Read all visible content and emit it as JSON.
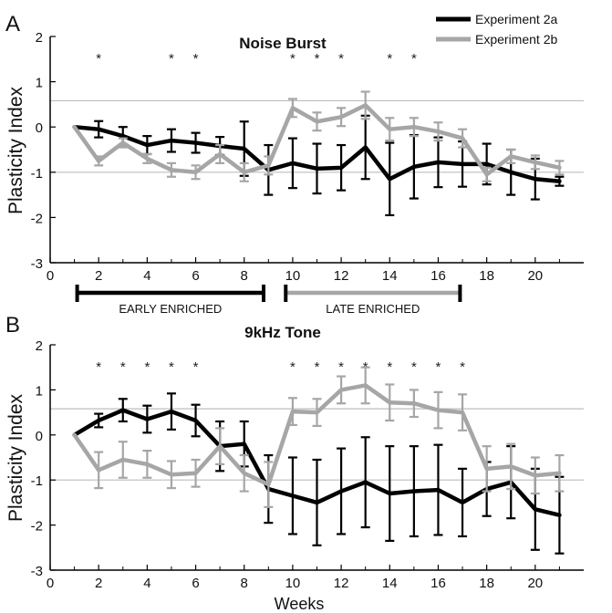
{
  "legend": [
    {
      "label": "Experiment 2a",
      "color": "#000000"
    },
    {
      "label": "Experiment 2b",
      "color": "#a6a6a6"
    }
  ],
  "x_axis_label": "Weeks",
  "brackets": [
    {
      "label": "EARLY ENRICHED",
      "from": 1,
      "to": 8.8,
      "color": "#000000"
    },
    {
      "label": "LATE ENRICHED",
      "from": 9.6,
      "to": 16.9,
      "color": "#a6a6a6"
    }
  ],
  "chart_data": [
    {
      "type": "line",
      "panel": "A",
      "title": "Noise Burst",
      "ylabel": "Plasticity Index",
      "xlim": [
        0,
        22
      ],
      "ylim": [
        -3,
        2
      ],
      "x_ticks": [
        0,
        2,
        4,
        6,
        8,
        10,
        12,
        14,
        16,
        18,
        20
      ],
      "y_ticks": [
        -3,
        -2,
        -1,
        0,
        1,
        2
      ],
      "reference_lines": [
        0.58,
        -1
      ],
      "significance_weeks": [
        2,
        5,
        6,
        10,
        11,
        12,
        14,
        15
      ],
      "significance_marker": "*",
      "x": [
        1,
        2,
        3,
        4,
        5,
        6,
        7,
        8,
        9,
        10,
        11,
        12,
        13,
        14,
        15,
        16,
        17,
        18,
        19,
        20,
        21
      ],
      "series": [
        {
          "name": "Experiment 2a",
          "color": "#000000",
          "values": [
            0,
            -0.05,
            -0.2,
            -0.4,
            -0.3,
            -0.35,
            -0.42,
            -0.48,
            -0.95,
            -0.8,
            -0.92,
            -0.9,
            -0.45,
            -1.15,
            -0.88,
            -0.78,
            -0.82,
            -0.82,
            -1.0,
            -1.15,
            -1.2
          ],
          "errors": [
            0,
            0.18,
            0.2,
            0.2,
            0.25,
            0.22,
            0.2,
            0.6,
            0.55,
            0.55,
            0.55,
            0.5,
            0.7,
            0.8,
            0.7,
            0.55,
            0.5,
            0.45,
            0.5,
            0.45,
            0.1
          ]
        },
        {
          "name": "Experiment 2b",
          "color": "#a6a6a6",
          "values": [
            0,
            -0.75,
            -0.35,
            -0.7,
            -0.95,
            -1.0,
            -0.6,
            -1.0,
            -0.85,
            0.42,
            0.12,
            0.22,
            0.48,
            -0.05,
            0.0,
            -0.1,
            -0.25,
            -1.05,
            -0.65,
            -0.78,
            -0.9
          ],
          "errors": [
            0,
            0.1,
            0.1,
            0.1,
            0.15,
            0.15,
            0.2,
            0.2,
            0.2,
            0.2,
            0.2,
            0.2,
            0.3,
            0.25,
            0.2,
            0.2,
            0.2,
            0.15,
            0.15,
            0.15,
            0.15
          ]
        }
      ]
    },
    {
      "type": "line",
      "panel": "B",
      "title": "9kHz Tone",
      "ylabel": "Plasticity Index",
      "xlabel": "Weeks",
      "xlim": [
        0,
        22
      ],
      "ylim": [
        -3,
        2
      ],
      "x_ticks": [
        0,
        2,
        4,
        6,
        8,
        10,
        12,
        14,
        16,
        18,
        20
      ],
      "y_ticks": [
        -3,
        -2,
        -1,
        0,
        1,
        2
      ],
      "reference_lines": [
        0.58,
        -1
      ],
      "significance_weeks": [
        2,
        3,
        4,
        5,
        6,
        10,
        11,
        12,
        13,
        14,
        15,
        16,
        17
      ],
      "significance_marker": "*",
      "x": [
        1,
        2,
        3,
        4,
        5,
        6,
        7,
        8,
        9,
        10,
        11,
        12,
        13,
        14,
        15,
        16,
        17,
        18,
        19,
        20,
        21
      ],
      "series": [
        {
          "name": "Experiment 2a",
          "color": "#000000",
          "values": [
            0,
            0.32,
            0.55,
            0.35,
            0.52,
            0.32,
            -0.25,
            -0.2,
            -1.2,
            -1.35,
            -1.5,
            -1.25,
            -1.05,
            -1.3,
            -1.25,
            -1.22,
            -1.5,
            -1.2,
            -1.05,
            -1.65,
            -1.78
          ],
          "errors": [
            0,
            0.15,
            0.25,
            0.3,
            0.4,
            0.35,
            0.55,
            0.5,
            0.75,
            0.85,
            0.95,
            0.95,
            1.0,
            1.05,
            1.0,
            1.0,
            0.75,
            0.6,
            0.8,
            0.9,
            0.85
          ]
        },
        {
          "name": "Experiment 2b",
          "color": "#a6a6a6",
          "values": [
            0,
            -0.78,
            -0.55,
            -0.65,
            -0.88,
            -0.85,
            -0.25,
            -0.85,
            -1.1,
            0.52,
            0.5,
            1.0,
            1.1,
            0.72,
            0.7,
            0.55,
            0.5,
            -0.75,
            -0.7,
            -0.9,
            -0.85
          ],
          "errors": [
            0,
            0.4,
            0.4,
            0.3,
            0.3,
            0.3,
            0.4,
            0.4,
            0.5,
            0.3,
            0.3,
            0.3,
            0.4,
            0.4,
            0.3,
            0.4,
            0.4,
            0.5,
            0.5,
            0.4,
            0.4
          ]
        }
      ]
    }
  ]
}
